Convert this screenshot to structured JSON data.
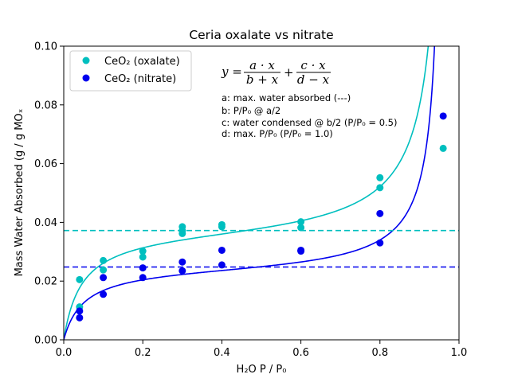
{
  "chart_data": {
    "type": "scatter",
    "title": "Ceria oxalate vs nitrate",
    "xlabel": "H₂O P / P₀",
    "ylabel": "Mass Water Absorbed (g / g MOₓ",
    "xlim": [
      0.0,
      1.0
    ],
    "ylim": [
      0.0,
      0.1
    ],
    "xticks": [
      "0.0",
      "0.2",
      "0.4",
      "0.6",
      "0.8",
      "1.0"
    ],
    "yticks": [
      "0.00",
      "0.02",
      "0.04",
      "0.06",
      "0.08",
      "0.10"
    ],
    "grid": false,
    "legend_position": "top-left",
    "series": [
      {
        "name": "CeO₂ (oxalate)",
        "color": "#00bfbf",
        "points": [
          [
            0.04,
            0.0205
          ],
          [
            0.04,
            0.0112
          ],
          [
            0.1,
            0.027
          ],
          [
            0.1,
            0.0238
          ],
          [
            0.2,
            0.0302
          ],
          [
            0.2,
            0.0282
          ],
          [
            0.3,
            0.0385
          ],
          [
            0.3,
            0.0372
          ],
          [
            0.3,
            0.0362
          ],
          [
            0.4,
            0.0392
          ],
          [
            0.4,
            0.0385
          ],
          [
            0.6,
            0.0402
          ],
          [
            0.6,
            0.0382
          ],
          [
            0.8,
            0.0552
          ],
          [
            0.8,
            0.0518
          ],
          [
            0.96,
            0.0652
          ]
        ],
        "fit": {
          "a": 0.0372,
          "b": 0.045,
          "c": 0.0037,
          "d": 0.975
        },
        "hline": 0.0372
      },
      {
        "name": "CeO₂ (nitrate)",
        "color": "#0000ee",
        "points": [
          [
            0.04,
            0.0098
          ],
          [
            0.04,
            0.0075
          ],
          [
            0.1,
            0.0212
          ],
          [
            0.1,
            0.0155
          ],
          [
            0.2,
            0.0245
          ],
          [
            0.2,
            0.0212
          ],
          [
            0.3,
            0.0265
          ],
          [
            0.3,
            0.0235
          ],
          [
            0.4,
            0.0305
          ],
          [
            0.4,
            0.0255
          ],
          [
            0.6,
            0.0305
          ],
          [
            0.6,
            0.0302
          ],
          [
            0.8,
            0.043
          ],
          [
            0.8,
            0.033
          ],
          [
            0.96,
            0.0762
          ]
        ],
        "fit": {
          "a": 0.0248,
          "b": 0.05,
          "c": 0.0022,
          "d": 0.965
        },
        "hline": 0.0248
      }
    ],
    "equation": {
      "lhs": "y =",
      "frac1_num": "a · x",
      "frac1_den": "b + x",
      "plus": "+",
      "frac2_num": "c · x",
      "frac2_den": "d − x"
    },
    "annotations": [
      "a: max. water absorbed (---)",
      "b: P/P₀ @ a/2",
      "c: water condensed @ b/2 (P/P₀ = 0.5)",
      "d: max. P/P₀ (P/P₀ = 1.0)"
    ]
  }
}
